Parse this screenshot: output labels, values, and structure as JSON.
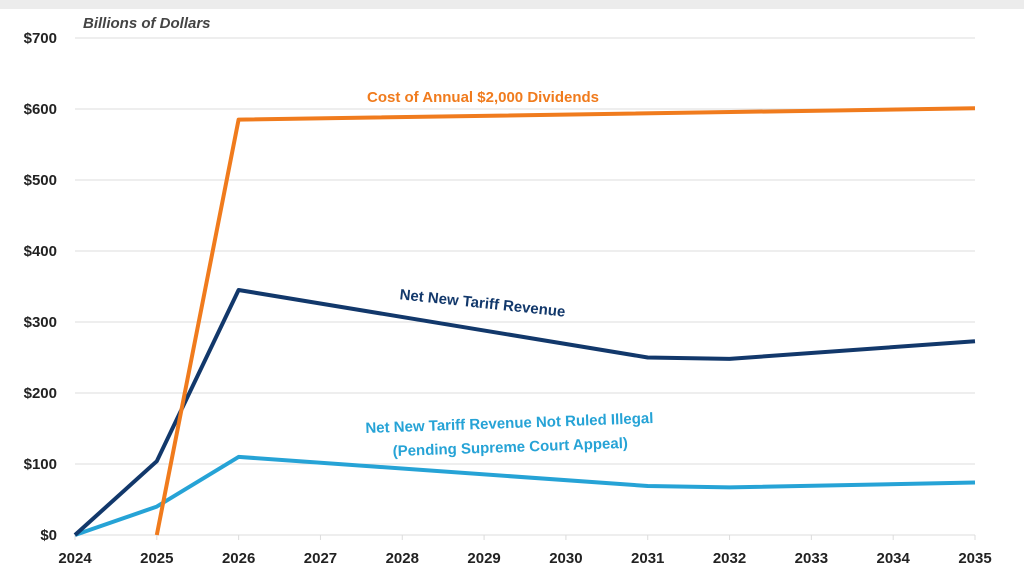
{
  "chart_data": {
    "type": "line",
    "ylabel": "Billions of Dollars",
    "xlabel": "",
    "x": [
      2024,
      2025,
      2026,
      2027,
      2028,
      2029,
      2030,
      2031,
      2032,
      2033,
      2034,
      2035
    ],
    "xlim": [
      2024,
      2035
    ],
    "ylim": [
      0,
      700
    ],
    "y_ticks": [
      0,
      100,
      200,
      300,
      400,
      500,
      600,
      700
    ],
    "y_tick_labels": [
      "$0",
      "$100",
      "$200",
      "$300",
      "$400",
      "$500",
      "$600",
      "$700"
    ],
    "x_tick_labels": [
      "2024",
      "2025",
      "2026",
      "2027",
      "2028",
      "2029",
      "2030",
      "2031",
      "2032",
      "2033",
      "2034",
      "2035"
    ],
    "grid": true,
    "legend": "none (inline labels)",
    "series": [
      {
        "name": "Cost of Annual $2,000 Dividends",
        "color": "#f07b1d",
        "points": [
          [
            2025,
            0
          ],
          [
            2026,
            585
          ],
          [
            2035,
            601
          ]
        ]
      },
      {
        "name": "Net New Tariff Revenue",
        "color": "#12386b",
        "points": [
          [
            2024,
            0
          ],
          [
            2025,
            104
          ],
          [
            2026,
            345
          ],
          [
            2031,
            250
          ],
          [
            2032,
            248
          ],
          [
            2035,
            273
          ]
        ]
      },
      {
        "name": "Net New Tariff Revenue Not Ruled Illegal",
        "name_line2": "(Pending Supreme Court Appeal)",
        "color": "#26a3d6",
        "points": [
          [
            2024,
            0
          ],
          [
            2025,
            40
          ],
          [
            2026,
            110
          ],
          [
            2031,
            69
          ],
          [
            2032,
            67
          ],
          [
            2035,
            74
          ]
        ]
      }
    ]
  }
}
